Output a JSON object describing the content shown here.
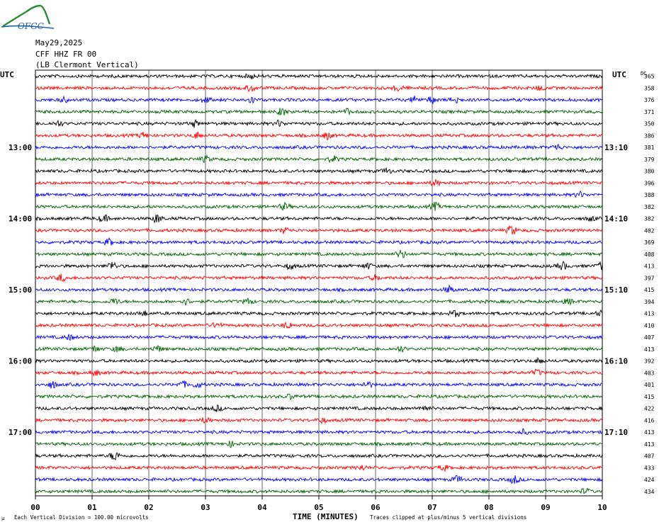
{
  "header": {
    "logo_text": "OFGC",
    "date": "May29,2025",
    "station": "CFF HHZ FR 00",
    "location": "(LB  Clermont Vertical)"
  },
  "labels": {
    "left_tz": "UTC",
    "right_tz": "UTC",
    "dc_header": "DC",
    "x_axis_title": "TIME (MINUTES)",
    "scale_note": "Each Vertical Division =  100.00 microvolts",
    "clip_note": "Traces clipped at plus/minus 5 vertical divisions",
    "corner_mark": "µ"
  },
  "chart_data": {
    "type": "line",
    "title": "",
    "xlabel": "TIME (MINUTES)",
    "ylabel": "",
    "x_ticks": [
      "00",
      "01",
      "02",
      "03",
      "04",
      "05",
      "06",
      "07",
      "08",
      "09",
      "10"
    ],
    "xlim": [
      0,
      10
    ],
    "grid": true,
    "trace_count": 36,
    "trace_colors": [
      "#000000",
      "#ff0000",
      "#0000ff",
      "#006400"
    ],
    "left_time_labels": [
      {
        "row": 6,
        "label": "13:00"
      },
      {
        "row": 12,
        "label": "14:00"
      },
      {
        "row": 18,
        "label": "15:00"
      },
      {
        "row": 24,
        "label": "16:00"
      },
      {
        "row": 30,
        "label": "17:00"
      }
    ],
    "right_time_labels": [
      {
        "row": 6,
        "label": "13:10"
      },
      {
        "row": 12,
        "label": "14:10"
      },
      {
        "row": 18,
        "label": "15:10"
      },
      {
        "row": 24,
        "label": "16:10"
      },
      {
        "row": 30,
        "label": "17:10"
      }
    ],
    "dc_offsets": [
      "365",
      "358",
      "376",
      "371",
      "350",
      "386",
      "381",
      "379",
      "380",
      "396",
      "388",
      "382",
      "382",
      "402",
      "369",
      "408",
      "413",
      "397",
      "415",
      "394",
      "413",
      "410",
      "407",
      "413",
      "392",
      "403",
      "401",
      "415",
      "422",
      "416",
      "413",
      "413",
      "407",
      "433",
      "424",
      "434"
    ],
    "events": [
      {
        "row": 0,
        "x": 3.8,
        "amp": 1.2
      },
      {
        "row": 1,
        "x": 3.8,
        "amp": 1.8
      },
      {
        "row": 1,
        "x": 6.4,
        "amp": 1.6
      },
      {
        "row": 1,
        "x": 8.9,
        "amp": 1.3
      },
      {
        "row": 2,
        "x": 0.5,
        "amp": 1.2
      },
      {
        "row": 2,
        "x": 3.0,
        "amp": 1.6
      },
      {
        "row": 2,
        "x": 3.8,
        "amp": 1.7
      },
      {
        "row": 2,
        "x": 6.7,
        "amp": 1.8
      },
      {
        "row": 2,
        "x": 7.0,
        "amp": 1.9
      },
      {
        "row": 2,
        "x": 7.4,
        "amp": 2.3
      },
      {
        "row": 3,
        "x": 4.35,
        "amp": 2.0
      },
      {
        "row": 3,
        "x": 5.5,
        "amp": 1.4
      },
      {
        "row": 4,
        "x": 0.4,
        "amp": 1.4
      },
      {
        "row": 4,
        "x": 2.8,
        "amp": 1.6
      },
      {
        "row": 4,
        "x": 4.3,
        "amp": 1.6
      },
      {
        "row": 5,
        "x": 1.9,
        "amp": 1.4
      },
      {
        "row": 5,
        "x": 2.85,
        "amp": 1.6
      },
      {
        "row": 5,
        "x": 5.15,
        "amp": 1.8
      },
      {
        "row": 6,
        "x": 9.2,
        "amp": 1.6
      },
      {
        "row": 7,
        "x": 3.0,
        "amp": 1.5
      },
      {
        "row": 7,
        "x": 5.25,
        "amp": 1.6
      },
      {
        "row": 8,
        "x": 6.2,
        "amp": 1.3
      },
      {
        "row": 9,
        "x": 7.05,
        "amp": 1.6
      },
      {
        "row": 10,
        "x": 9.6,
        "amp": 1.4
      },
      {
        "row": 11,
        "x": 4.4,
        "amp": 1.7
      },
      {
        "row": 11,
        "x": 7.05,
        "amp": 2.0
      },
      {
        "row": 12,
        "x": 1.2,
        "amp": 1.9
      },
      {
        "row": 12,
        "x": 2.15,
        "amp": 2.4
      },
      {
        "row": 12,
        "x": 9.8,
        "amp": 1.3
      },
      {
        "row": 13,
        "x": 4.4,
        "amp": 1.6
      },
      {
        "row": 13,
        "x": 8.4,
        "amp": 2.6
      },
      {
        "row": 14,
        "x": 1.3,
        "amp": 1.6
      },
      {
        "row": 15,
        "x": 6.45,
        "amp": 2.2
      },
      {
        "row": 16,
        "x": 1.35,
        "amp": 2.2
      },
      {
        "row": 16,
        "x": 4.5,
        "amp": 1.6
      },
      {
        "row": 16,
        "x": 5.85,
        "amp": 1.5
      },
      {
        "row": 16,
        "x": 9.3,
        "amp": 2.2
      },
      {
        "row": 16,
        "x": 9.98,
        "amp": 1.8
      },
      {
        "row": 17,
        "x": 0.45,
        "amp": 1.8
      },
      {
        "row": 17,
        "x": 6.0,
        "amp": 1.3
      },
      {
        "row": 18,
        "x": 7.3,
        "amp": 1.8
      },
      {
        "row": 19,
        "x": 1.4,
        "amp": 1.7
      },
      {
        "row": 19,
        "x": 2.65,
        "amp": 1.5
      },
      {
        "row": 19,
        "x": 3.75,
        "amp": 1.6
      },
      {
        "row": 19,
        "x": 9.4,
        "amp": 1.4
      },
      {
        "row": 20,
        "x": 1.9,
        "amp": 1.3
      },
      {
        "row": 20,
        "x": 7.4,
        "amp": 1.6
      },
      {
        "row": 20,
        "x": 9.98,
        "amp": 1.3
      },
      {
        "row": 21,
        "x": 3.2,
        "amp": 1.4
      },
      {
        "row": 21,
        "x": 4.45,
        "amp": 1.6
      },
      {
        "row": 22,
        "x": 0.6,
        "amp": 1.3
      },
      {
        "row": 23,
        "x": 1.05,
        "amp": 1.5
      },
      {
        "row": 23,
        "x": 1.45,
        "amp": 1.4
      },
      {
        "row": 23,
        "x": 2.15,
        "amp": 1.6
      },
      {
        "row": 23,
        "x": 6.45,
        "amp": 1.3
      },
      {
        "row": 24,
        "x": 8.9,
        "amp": 1.4
      },
      {
        "row": 25,
        "x": 1.05,
        "amp": 1.5
      },
      {
        "row": 25,
        "x": 8.85,
        "amp": 1.4
      },
      {
        "row": 26,
        "x": 0.3,
        "amp": 1.8
      },
      {
        "row": 26,
        "x": 2.6,
        "amp": 1.6
      },
      {
        "row": 26,
        "x": 2.85,
        "amp": 1.5
      },
      {
        "row": 26,
        "x": 5.85,
        "amp": 1.7
      },
      {
        "row": 27,
        "x": 4.5,
        "amp": 1.2
      },
      {
        "row": 28,
        "x": 3.2,
        "amp": 1.4
      },
      {
        "row": 28,
        "x": 6.85,
        "amp": 1.6
      },
      {
        "row": 29,
        "x": 3.0,
        "amp": 1.3
      },
      {
        "row": 29,
        "x": 5.05,
        "amp": 1.3
      },
      {
        "row": 30,
        "x": 8.6,
        "amp": 1.2
      },
      {
        "row": 31,
        "x": 3.45,
        "amp": 1.3
      },
      {
        "row": 32,
        "x": 1.4,
        "amp": 2.6
      },
      {
        "row": 33,
        "x": 5.75,
        "amp": 1.3
      },
      {
        "row": 33,
        "x": 7.2,
        "amp": 1.4
      },
      {
        "row": 34,
        "x": 7.45,
        "amp": 2.0
      },
      {
        "row": 34,
        "x": 8.45,
        "amp": 2.1
      },
      {
        "row": 35,
        "x": 9.7,
        "amp": 1.3
      }
    ]
  }
}
